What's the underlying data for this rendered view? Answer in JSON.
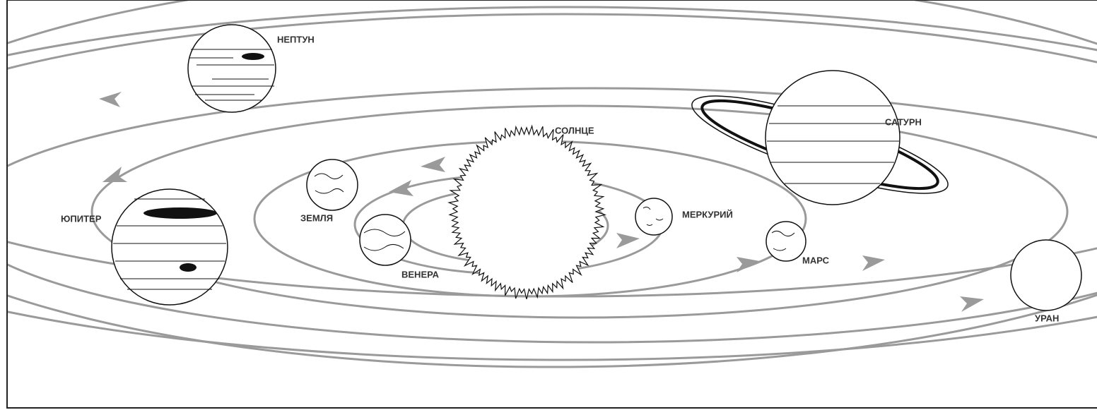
{
  "nodes": [
    {
      "label": "НЕПТУН"
    },
    {
      "label": "СОЛНЦЕ"
    },
    {
      "label": "САТУРН"
    },
    {
      "label": "ЮПИТЕР"
    },
    {
      "label": "ЗЕМЛЯ"
    },
    {
      "label": "МЕРКУРИЙ"
    },
    {
      "label": "ВЕНЕРА"
    },
    {
      "label": "МАРС"
    },
    {
      "label": "УРАН"
    }
  ]
}
